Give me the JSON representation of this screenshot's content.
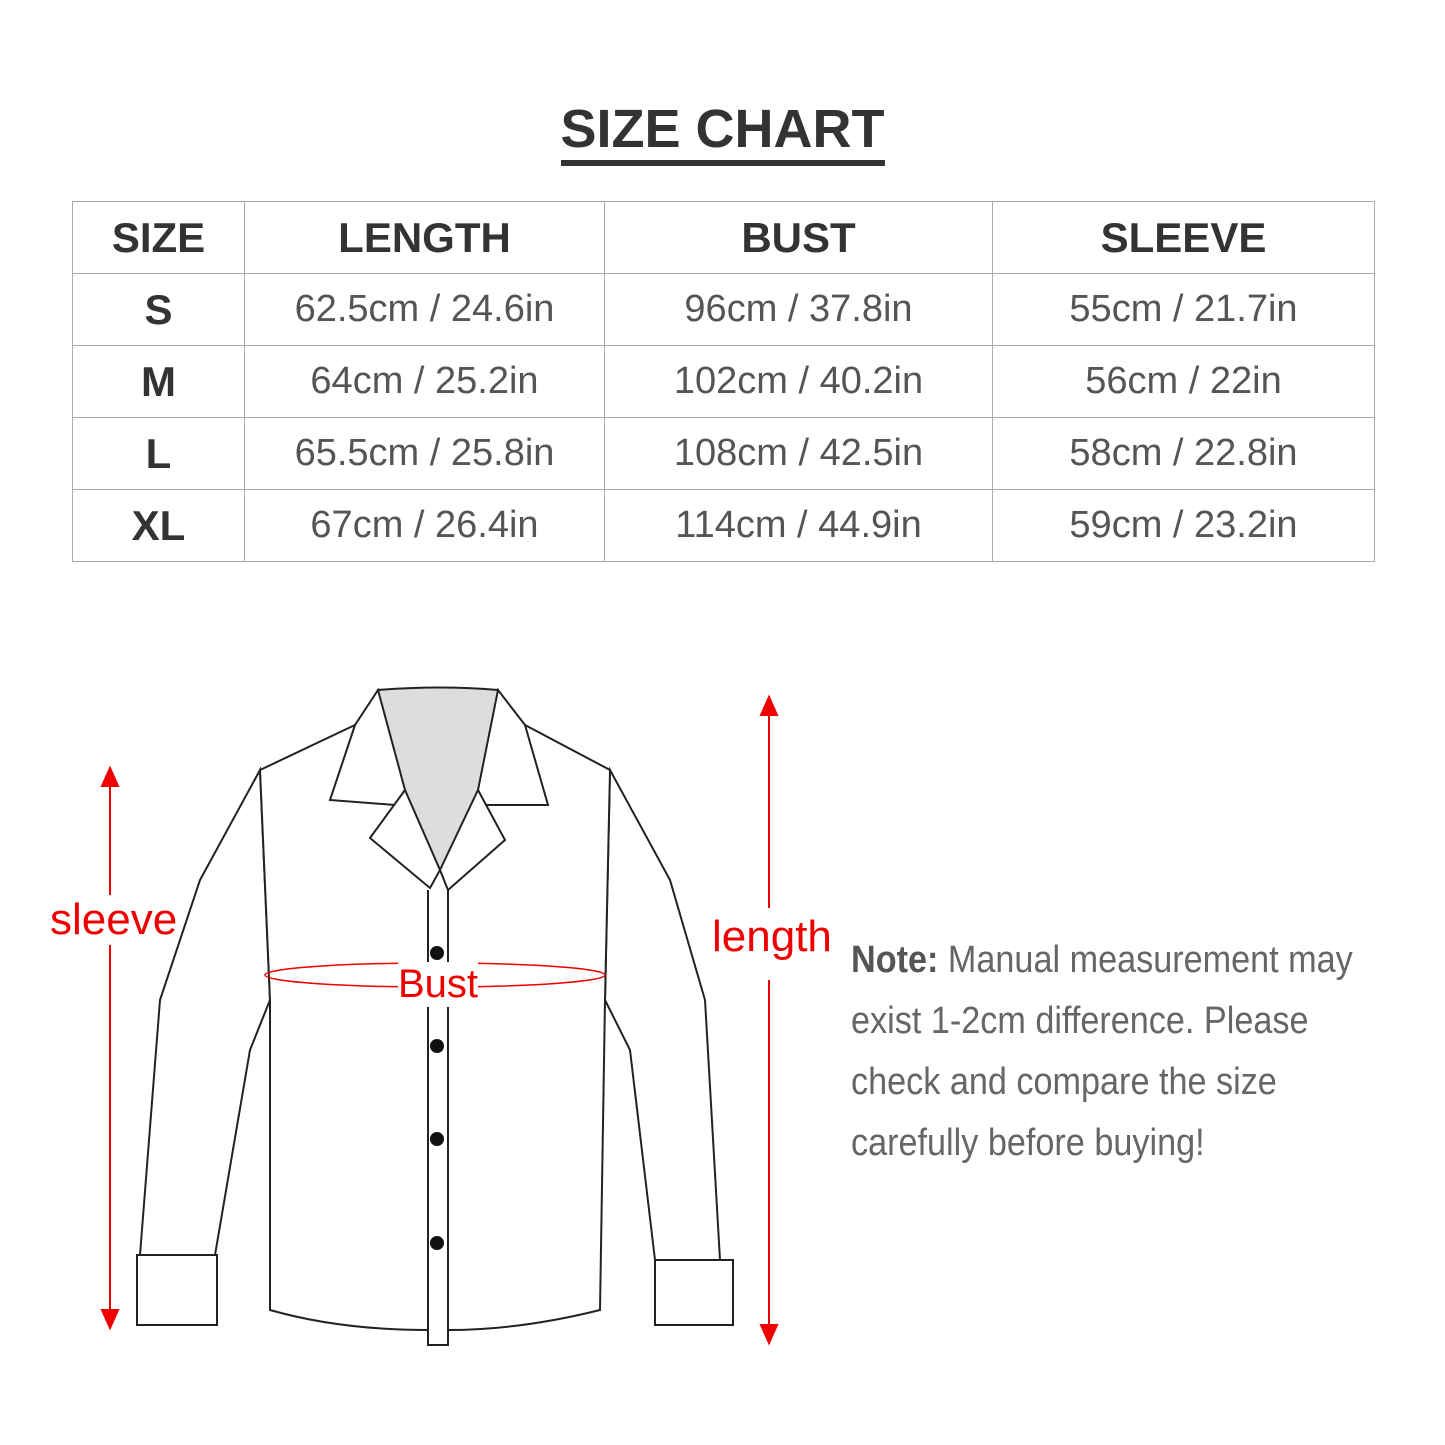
{
  "title": "SIZE CHART",
  "table": {
    "headers": [
      "SIZE",
      "LENGTH",
      "BUST",
      "SLEEVE"
    ],
    "rows": [
      [
        "S",
        "62.5cm / 24.6in",
        "96cm / 37.8in",
        "55cm / 21.7in"
      ],
      [
        "M",
        "64cm / 25.2in",
        "102cm / 40.2in",
        "56cm / 22in"
      ],
      [
        "L",
        "65.5cm / 25.8in",
        "108cm / 42.5in",
        "58cm / 22.8in"
      ],
      [
        "XL",
        "67cm / 26.4in",
        "114cm / 44.9in",
        "59cm / 23.2in"
      ]
    ]
  },
  "diagram": {
    "sleeve_label": "sleeve",
    "bust_label": "Bust",
    "length_label": "length",
    "accent_color": "#e00000"
  },
  "note": {
    "label": "Note:",
    "text": "Manual measurement may exist 1-2cm difference. Please check and compare the size carefully before buying!"
  }
}
